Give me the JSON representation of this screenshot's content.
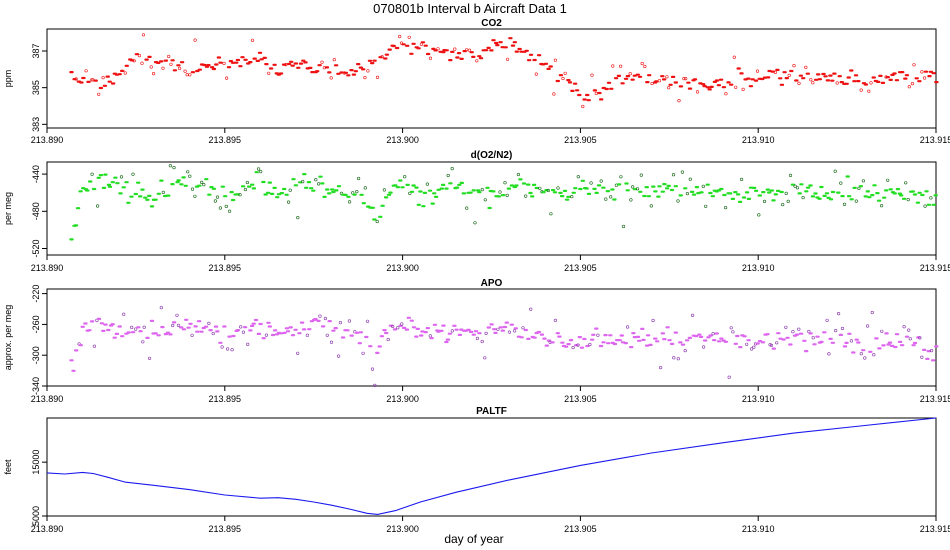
{
  "figure": {
    "title": "070801b   Interval b Aircraft Data 1",
    "xlabel": "day of year"
  },
  "colors": {
    "co2": "#ee1111",
    "o2n2": "#22dd22",
    "o2n2_dark": "#116611",
    "apo": "#dd66ee",
    "apo_dark": "#8833aa",
    "paltf": "#1a1aee"
  },
  "chart_data": [
    {
      "id": "co2",
      "type": "scatter",
      "title": "CO2",
      "ylabel": "ppm",
      "xlim": [
        213.89,
        213.915
      ],
      "ylim": [
        382.8,
        388.2
      ],
      "xticks": [
        "213.890",
        "213.895",
        "213.900",
        "213.905",
        "213.910",
        "213.915"
      ],
      "yticks": [
        "383",
        "385",
        "387"
      ],
      "ytick_values": [
        383,
        385,
        387
      ],
      "x_start": 213.8907,
      "x_end": 213.915,
      "trend": [
        [
          213.8907,
          385.6
        ],
        [
          213.891,
          385.4
        ],
        [
          213.8915,
          385.2
        ],
        [
          213.892,
          385.7
        ],
        [
          213.8925,
          386.9
        ],
        [
          213.893,
          386.6
        ],
        [
          213.8935,
          386.2
        ],
        [
          213.894,
          386.0
        ],
        [
          213.8945,
          386.2
        ],
        [
          213.895,
          386.4
        ],
        [
          213.8955,
          386.3
        ],
        [
          213.896,
          386.6
        ],
        [
          213.8965,
          386.0
        ],
        [
          213.897,
          386.4
        ],
        [
          213.8975,
          385.9
        ],
        [
          213.898,
          386.0
        ],
        [
          213.8985,
          385.8
        ],
        [
          213.899,
          386.2
        ],
        [
          213.8995,
          386.6
        ],
        [
          213.8998,
          387.2
        ],
        [
          213.9,
          387.3
        ],
        [
          213.9005,
          387.2
        ],
        [
          213.901,
          387.1
        ],
        [
          213.9015,
          386.7
        ],
        [
          213.902,
          386.8
        ],
        [
          213.9025,
          387.2
        ],
        [
          213.903,
          387.5
        ],
        [
          213.9035,
          387.0
        ],
        [
          213.904,
          386.2
        ],
        [
          213.9045,
          385.7
        ],
        [
          213.905,
          384.6
        ],
        [
          213.9055,
          384.7
        ],
        [
          213.906,
          385.3
        ],
        [
          213.9065,
          385.6
        ],
        [
          213.907,
          385.4
        ],
        [
          213.9075,
          385.6
        ],
        [
          213.908,
          385.3
        ],
        [
          213.9085,
          385.2
        ],
        [
          213.909,
          385.1
        ],
        [
          213.9095,
          385.6
        ],
        [
          213.91,
          385.5
        ],
        [
          213.9105,
          385.8
        ],
        [
          213.911,
          385.6
        ],
        [
          213.9115,
          385.7
        ],
        [
          213.912,
          385.5
        ],
        [
          213.9125,
          385.4
        ],
        [
          213.913,
          385.3
        ],
        [
          213.9135,
          385.4
        ],
        [
          213.914,
          385.6
        ],
        [
          213.9145,
          385.6
        ],
        [
          213.915,
          385.7
        ]
      ],
      "noise": 0.35,
      "n_points": 360,
      "seed": 11
    },
    {
      "id": "o2n2",
      "type": "scatter",
      "title": "d(O2/N2)",
      "ylabel": "per meg",
      "xlim": [
        213.89,
        213.915
      ],
      "ylim": [
        -527,
        -427
      ],
      "xticks": [
        "213.890",
        "213.895",
        "213.900",
        "213.905",
        "213.910",
        "213.915"
      ],
      "yticks": [
        "-520",
        "-480",
        "-440"
      ],
      "ytick_values": [
        -520,
        -480,
        -440
      ],
      "x_start": 213.8907,
      "x_end": 213.915,
      "trend": [
        [
          213.8907,
          -505
        ],
        [
          213.891,
          -458
        ],
        [
          213.8915,
          -448
        ],
        [
          213.892,
          -456
        ],
        [
          213.8925,
          -460
        ],
        [
          213.893,
          -465
        ],
        [
          213.8935,
          -452
        ],
        [
          213.894,
          -448
        ],
        [
          213.8945,
          -455
        ],
        [
          213.895,
          -462
        ],
        [
          213.8955,
          -458
        ],
        [
          213.896,
          -452
        ],
        [
          213.8965,
          -460
        ],
        [
          213.897,
          -455
        ],
        [
          213.8975,
          -450
        ],
        [
          213.898,
          -458
        ],
        [
          213.8985,
          -462
        ],
        [
          213.899,
          -470
        ],
        [
          213.8993,
          -498
        ],
        [
          213.8995,
          -462
        ],
        [
          213.9,
          -448
        ],
        [
          213.9005,
          -462
        ],
        [
          213.901,
          -458
        ],
        [
          213.9015,
          -455
        ],
        [
          213.902,
          -460
        ],
        [
          213.9025,
          -462
        ],
        [
          213.903,
          -455
        ],
        [
          213.9035,
          -452
        ],
        [
          213.904,
          -458
        ],
        [
          213.9045,
          -462
        ],
        [
          213.905,
          -458
        ],
        [
          213.9055,
          -455
        ],
        [
          213.906,
          -458
        ],
        [
          213.9065,
          -455
        ],
        [
          213.907,
          -460
        ],
        [
          213.9075,
          -456
        ],
        [
          213.908,
          -458
        ],
        [
          213.9085,
          -455
        ],
        [
          213.909,
          -462
        ],
        [
          213.9095,
          -458
        ],
        [
          213.91,
          -460
        ],
        [
          213.9105,
          -462
        ],
        [
          213.911,
          -458
        ],
        [
          213.9115,
          -462
        ],
        [
          213.912,
          -460
        ],
        [
          213.9125,
          -456
        ],
        [
          213.913,
          -462
        ],
        [
          213.9135,
          -458
        ],
        [
          213.914,
          -460
        ],
        [
          213.9145,
          -466
        ],
        [
          213.915,
          -475
        ]
      ],
      "noise": 9,
      "n_points": 380,
      "seed": 23
    },
    {
      "id": "apo",
      "type": "scatter",
      "title": "APO",
      "ylabel": "approx. per meg",
      "xlim": [
        213.89,
        213.915
      ],
      "ylim": [
        -340,
        -214
      ],
      "xticks": [
        "213.890",
        "213.895",
        "213.900",
        "213.905",
        "213.910",
        "213.915"
      ],
      "yticks": [
        "-340",
        "-300",
        "-260",
        "-220"
      ],
      "ytick_values": [
        -340,
        -300,
        -260,
        -220
      ],
      "x_start": 213.8907,
      "x_end": 213.915,
      "trend": [
        [
          213.8907,
          -318
        ],
        [
          213.891,
          -272
        ],
        [
          213.8915,
          -262
        ],
        [
          213.892,
          -268
        ],
        [
          213.8925,
          -272
        ],
        [
          213.893,
          -270
        ],
        [
          213.8935,
          -262
        ],
        [
          213.894,
          -260
        ],
        [
          213.8945,
          -266
        ],
        [
          213.895,
          -272
        ],
        [
          213.8955,
          -270
        ],
        [
          213.896,
          -262
        ],
        [
          213.8965,
          -270
        ],
        [
          213.897,
          -266
        ],
        [
          213.8975,
          -258
        ],
        [
          213.898,
          -266
        ],
        [
          213.8985,
          -270
        ],
        [
          213.899,
          -276
        ],
        [
          213.8992,
          -312
        ],
        [
          213.8995,
          -268
        ],
        [
          213.9,
          -258
        ],
        [
          213.9005,
          -270
        ],
        [
          213.901,
          -272
        ],
        [
          213.9015,
          -268
        ],
        [
          213.902,
          -270
        ],
        [
          213.9025,
          -266
        ],
        [
          213.903,
          -266
        ],
        [
          213.9035,
          -270
        ],
        [
          213.904,
          -276
        ],
        [
          213.9045,
          -280
        ],
        [
          213.905,
          -282
        ],
        [
          213.9055,
          -278
        ],
        [
          213.906,
          -280
        ],
        [
          213.9065,
          -276
        ],
        [
          213.907,
          -278
        ],
        [
          213.9075,
          -274
        ],
        [
          213.908,
          -276
        ],
        [
          213.9085,
          -274
        ],
        [
          213.909,
          -280
        ],
        [
          213.9095,
          -278
        ],
        [
          213.91,
          -280
        ],
        [
          213.9105,
          -282
        ],
        [
          213.911,
          -278
        ],
        [
          213.9115,
          -284
        ],
        [
          213.912,
          -280
        ],
        [
          213.9125,
          -276
        ],
        [
          213.913,
          -284
        ],
        [
          213.9135,
          -282
        ],
        [
          213.914,
          -280
        ],
        [
          213.9145,
          -286
        ],
        [
          213.915,
          -298
        ]
      ],
      "noise": 11,
      "n_points": 380,
      "seed": 37
    },
    {
      "id": "paltf",
      "type": "line",
      "title": "PALTF",
      "ylabel": "feet",
      "xlim": [
        213.89,
        213.915
      ],
      "ylim": [
        5000,
        23200
      ],
      "xticks": [
        "213.890",
        "213.895",
        "213.900",
        "213.905",
        "213.910",
        "213.915"
      ],
      "yticks": [
        "5000",
        "15000"
      ],
      "ytick_values": [
        5000,
        15000
      ],
      "x": [
        213.89,
        213.8905,
        213.891,
        213.8913,
        213.8917,
        213.8922,
        213.893,
        213.894,
        213.895,
        213.896,
        213.8965,
        213.897,
        213.8975,
        213.898,
        213.8985,
        213.899,
        213.8993,
        213.8998,
        213.9005,
        213.9015,
        213.903,
        213.905,
        213.907,
        213.909,
        213.911,
        213.913,
        213.915
      ],
      "y": [
        13000,
        12800,
        13100,
        12900,
        12200,
        11300,
        10700,
        9900,
        8900,
        8300,
        8400,
        8100,
        7600,
        7000,
        6300,
        5500,
        5300,
        6000,
        7600,
        9400,
        11700,
        14400,
        16700,
        18600,
        20400,
        21800,
        23200
      ]
    }
  ]
}
